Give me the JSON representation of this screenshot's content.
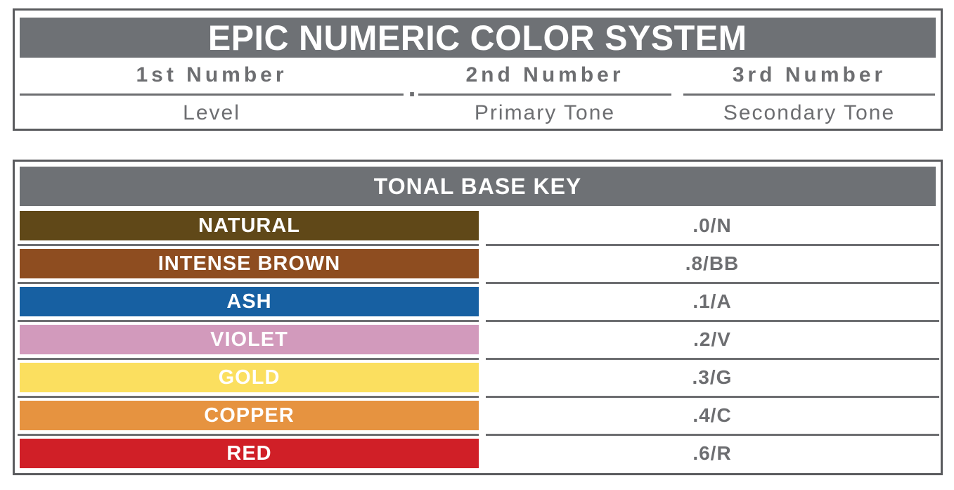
{
  "header_box": {
    "title": "EPIC NUMERIC COLOR SYSTEM",
    "separator_dot": ".",
    "columns": [
      {
        "number_label": "1st Number",
        "tone_label": "Level"
      },
      {
        "number_label": "2nd Number",
        "tone_label": "Primary Tone"
      },
      {
        "number_label": "3rd Number",
        "tone_label": "Secondary Tone"
      }
    ]
  },
  "tonal_key": {
    "title": "TONAL BASE KEY",
    "rows": [
      {
        "name": "NATURAL",
        "code": ".0/N",
        "color": "#604818"
      },
      {
        "name": "INTENSE BROWN",
        "code": ".8/BB",
        "color": "#8e4d20"
      },
      {
        "name": "ASH",
        "code": ".1/A",
        "color": "#1760a2"
      },
      {
        "name": "VIOLET",
        "code": ".2/V",
        "color": "#d29abc"
      },
      {
        "name": "GOLD",
        "code": ".3/G",
        "color": "#fbdf5f"
      },
      {
        "name": "COPPER",
        "code": ".4/C",
        "color": "#e69340"
      },
      {
        "name": "RED",
        "code": ".6/R",
        "color": "#d01f27"
      }
    ]
  },
  "colors": {
    "header_bar_gray": "#6e7175",
    "border_gray": "#5a5b5e",
    "text_gray": "#6d6e71",
    "label_white": "#ffffff"
  }
}
